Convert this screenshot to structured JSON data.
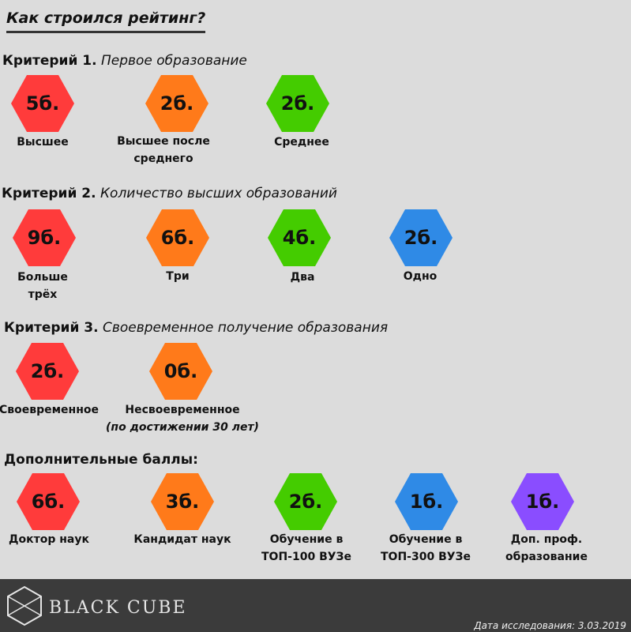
{
  "title": "Как строился рейтинг?",
  "colors": {
    "red": "#ff3b3b",
    "orange": "#ff7a1a",
    "green": "#44cc00",
    "blue": "#2f8ae6",
    "purple": "#8a4dff",
    "footer_bg": "#3b3b3b"
  },
  "criteria": [
    {
      "label": "Критерий 1.",
      "name": "Первое образование",
      "items": [
        {
          "points": "5б.",
          "color": "red",
          "label": "Высшее"
        },
        {
          "points": "2б.",
          "color": "orange",
          "label": "Высшее после среднего"
        },
        {
          "points": "2б.",
          "color": "green",
          "label": "Среднее"
        }
      ]
    },
    {
      "label": "Критерий 2.",
      "name": "Количество высших образований",
      "items": [
        {
          "points": "9б.",
          "color": "red",
          "label": "Больше трёх"
        },
        {
          "points": "6б.",
          "color": "orange",
          "label": "Три"
        },
        {
          "points": "4б.",
          "color": "green",
          "label": "Два"
        },
        {
          "points": "2б.",
          "color": "blue",
          "label": "Одно"
        }
      ]
    },
    {
      "label": "Критерий 3.",
      "name": "Своевременное получение образования",
      "items": [
        {
          "points": "2б.",
          "color": "red",
          "label": "Своевременное"
        },
        {
          "points": "0б.",
          "color": "orange",
          "label": "Несвоевременное",
          "sublabel": "(по достижении 30 лет)"
        }
      ]
    }
  ],
  "extra": {
    "label": "Дополнительные баллы:",
    "items": [
      {
        "points": "6б.",
        "color": "red",
        "label": "Доктор наук"
      },
      {
        "points": "3б.",
        "color": "orange",
        "label": "Кандидат наук"
      },
      {
        "points": "2б.",
        "color": "green",
        "label": "Обучение в ТОП-100 ВУЗе"
      },
      {
        "points": "1б.",
        "color": "blue",
        "label": "Обучение в ТОП-300 ВУЗе"
      },
      {
        "points": "1б.",
        "color": "purple",
        "label": "Доп. проф. образование"
      }
    ]
  },
  "footer": {
    "brand": "BLACK CUBE",
    "logo_icon": "cube-logo-icon",
    "date": "Дата исследования: 3.03.2019"
  }
}
